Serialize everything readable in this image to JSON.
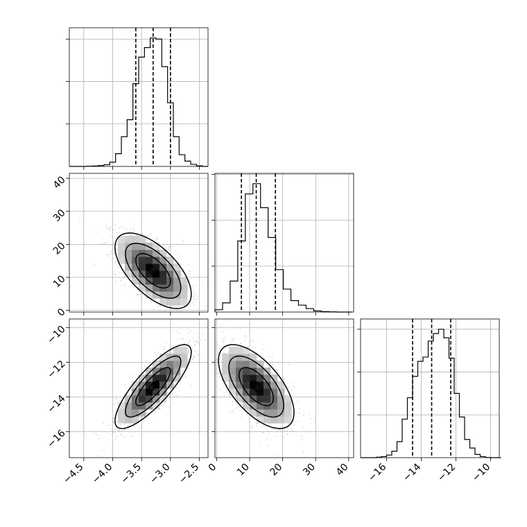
{
  "chart_data": {
    "type": "corner",
    "title": "",
    "parameters": [
      {
        "key": "p1",
        "label": "",
        "range": [
          -4.75,
          -2.35
        ],
        "ticks": [
          -4.5,
          -4.0,
          -3.5,
          -3.0,
          -2.5
        ],
        "tick_labels": [
          "−4.5",
          "−4.0",
          "−3.5",
          "−3.0",
          "−2.5"
        ]
      },
      {
        "key": "p2",
        "label": "",
        "range": [
          -0.5,
          41.5
        ],
        "ticks": [
          0,
          10,
          20,
          30,
          40
        ],
        "tick_labels": [
          "0",
          "10",
          "20",
          "30",
          "40"
        ]
      },
      {
        "key": "p3",
        "label": "",
        "range": [
          -17.5,
          -9.5
        ],
        "ticks": [
          -16,
          -14,
          -12,
          -10
        ],
        "tick_labels": [
          "−16",
          "−14",
          "−12",
          "−10"
        ]
      }
    ],
    "grid": true,
    "quantile_lines": {
      "p1": [
        -3.6,
        -3.3,
        -3.0
      ],
      "p2": [
        7.5,
        12.0,
        17.8
      ],
      "p3": [
        -14.5,
        -13.4,
        -12.3
      ]
    },
    "histograms": [
      {
        "param": "p1",
        "bins": [
          -4.75,
          -4.65,
          -4.55,
          -4.45,
          -4.35,
          -4.25,
          -4.15,
          -4.05,
          -3.95,
          -3.85,
          -3.75,
          -3.65,
          -3.55,
          -3.45,
          -3.35,
          -3.25,
          -3.15,
          -3.05,
          -2.95,
          -2.85,
          -2.75,
          -2.65,
          -2.55,
          -2.45,
          -2.35
        ],
        "counts": [
          0,
          0,
          0,
          1,
          2,
          4,
          8,
          20,
          60,
          140,
          220,
          390,
          515,
          560,
          605,
          600,
          470,
          300,
          140,
          55,
          25,
          10,
          3,
          0
        ]
      },
      {
        "param": "p2",
        "bins": [
          -0.5,
          1.8,
          4.1,
          6.4,
          8.7,
          11,
          13.3,
          15.6,
          17.9,
          20.2,
          22.5,
          24.8,
          27.1,
          29.4,
          31.7,
          34,
          36.3,
          38.6,
          40.9
        ],
        "counts": [
          10,
          40,
          135,
          310,
          515,
          560,
          455,
          325,
          185,
          100,
          50,
          30,
          15,
          5,
          2,
          1,
          0,
          0
        ]
      },
      {
        "param": "p3",
        "bins": [
          -17.5,
          -17.2,
          -16.9,
          -16.6,
          -16.3,
          -16,
          -15.7,
          -15.4,
          -15.1,
          -14.8,
          -14.5,
          -14.2,
          -13.9,
          -13.6,
          -13.3,
          -13,
          -12.7,
          -12.4,
          -12.1,
          -11.8,
          -11.5,
          -11.2,
          -10.9,
          -10.6,
          -10.3,
          -10,
          -9.7,
          -9.4
        ],
        "counts": [
          0,
          0,
          0,
          2,
          5,
          12,
          30,
          75,
          180,
          280,
          380,
          450,
          470,
          545,
          580,
          600,
          560,
          465,
          300,
          190,
          85,
          45,
          15,
          5,
          1,
          0,
          0
        ]
      }
    ],
    "joint_2d": [
      {
        "x": "p1",
        "y": "p2",
        "center": [
          -3.3,
          12.0
        ],
        "sd": [
          0.3,
          5.2
        ],
        "rho": -0.62,
        "contour_levels": [
          0.3,
          1.0,
          1.6,
          2.2
        ]
      },
      {
        "x": "p1",
        "y": "p3",
        "center": [
          -3.3,
          -13.4
        ],
        "sd": [
          0.3,
          1.1
        ],
        "rho": 0.82,
        "contour_levels": [
          0.3,
          1.0,
          1.6,
          2.2
        ]
      },
      {
        "x": "p2",
        "y": "p3",
        "center": [
          12.0,
          -13.4
        ],
        "sd": [
          5.2,
          1.1
        ],
        "rho": -0.62,
        "contour_levels": [
          0.3,
          1.0,
          1.6,
          2.2
        ]
      }
    ]
  }
}
